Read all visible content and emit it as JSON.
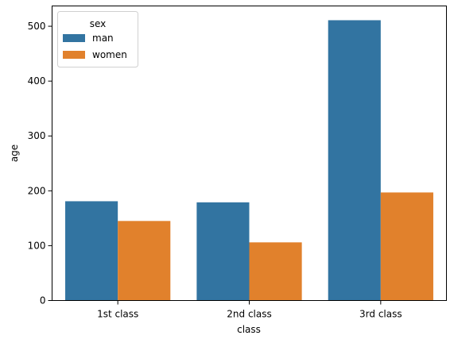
{
  "chart_data": {
    "type": "bar",
    "xlabel": "class",
    "ylabel": "age",
    "categories": [
      "1st class",
      "2nd class",
      "3rd class"
    ],
    "series": [
      {
        "name": "man",
        "color": "#3274a1",
        "values": [
          181,
          179,
          511
        ]
      },
      {
        "name": "women",
        "color": "#e1812c",
        "values": [
          145,
          106,
          197
        ]
      }
    ],
    "ylim": [
      0,
      537
    ],
    "yticks": [
      0,
      100,
      200,
      300,
      400,
      500
    ],
    "grid": false,
    "legend": {
      "title": "sex",
      "position": "top-left"
    }
  }
}
